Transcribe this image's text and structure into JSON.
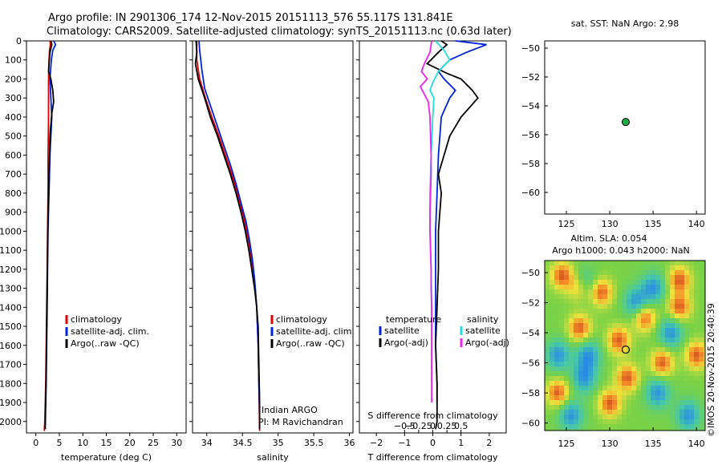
{
  "title_line1": "Argo profile: IN 2901306_174 12-Nov-2015 20151113_576 55.117S 131.841E",
  "title_line2": "Climatology: CARS2009. Satellite-adjusted climatology: synTS_20151113.nc (0.63d later)",
  "credit": "©IMOS 20-Nov-2015 20:40:39",
  "colors": {
    "clim": "#e00000",
    "sat": "#0022dd",
    "argo": "#000000",
    "sal_sat": "#22dddd",
    "sal_argo": "#ee22ee",
    "marker": "#22aa44"
  },
  "chart_data": [
    {
      "type": "line",
      "xlabel": "temperature (deg C)",
      "xlim": [
        -2,
        32
      ],
      "xticks": [
        0,
        5,
        10,
        15,
        20,
        25,
        30
      ],
      "ylim": [
        0,
        2060
      ],
      "yticks": [
        0,
        100,
        200,
        300,
        400,
        500,
        600,
        700,
        800,
        900,
        1000,
        1100,
        1200,
        1300,
        1400,
        1500,
        1600,
        1700,
        1800,
        1900,
        2000
      ],
      "legend": [
        "climatology",
        "satellite-adj. clim.",
        "Argo(..raw -QC)"
      ],
      "series": [
        {
          "name": "climatology",
          "color_key": "clim",
          "points": [
            [
              3.0,
              0
            ],
            [
              3.1,
              20
            ],
            [
              2.9,
              50
            ],
            [
              2.8,
              100
            ],
            [
              2.7,
              200
            ],
            [
              2.7,
              400
            ],
            [
              2.6,
              600
            ],
            [
              2.6,
              800
            ],
            [
              2.5,
              1000
            ],
            [
              2.4,
              1200
            ],
            [
              2.3,
              1400
            ],
            [
              2.2,
              1600
            ],
            [
              2.1,
              1800
            ],
            [
              1.9,
              2000
            ],
            [
              1.8,
              2050
            ]
          ]
        },
        {
          "name": "satellite-adj. clim.",
          "color_key": "sat",
          "points": [
            [
              3.8,
              0
            ],
            [
              4.2,
              20
            ],
            [
              3.6,
              50
            ],
            [
              3.3,
              100
            ],
            [
              3.0,
              200
            ],
            [
              3.2,
              300
            ],
            [
              3.4,
              400
            ],
            [
              3.0,
              600
            ],
            [
              2.8,
              800
            ],
            [
              2.6,
              1000
            ],
            [
              2.5,
              1200
            ],
            [
              2.4,
              1400
            ],
            [
              2.3,
              1600
            ],
            [
              2.2,
              1800
            ],
            [
              2.1,
              1900
            ]
          ]
        },
        {
          "name": "Argo(..raw -QC)",
          "color_key": "argo",
          "points": [
            [
              3.2,
              0
            ],
            [
              3.4,
              20
            ],
            [
              3.0,
              60
            ],
            [
              2.8,
              120
            ],
            [
              2.7,
              160
            ],
            [
              3.2,
              200
            ],
            [
              3.6,
              260
            ],
            [
              3.8,
              320
            ],
            [
              3.4,
              380
            ],
            [
              3.0,
              500
            ],
            [
              2.8,
              700
            ],
            [
              2.6,
              900
            ],
            [
              2.5,
              1100
            ],
            [
              2.4,
              1300
            ],
            [
              2.3,
              1500
            ],
            [
              2.2,
              1700
            ],
            [
              2.1,
              1900
            ],
            [
              2.0,
              2040
            ]
          ]
        }
      ]
    },
    {
      "type": "line",
      "xlabel": "salinity",
      "xlim": [
        33.8,
        36.05
      ],
      "xticks": [
        34,
        34.5,
        35,
        35.5,
        36
      ],
      "ylim": [
        0,
        2060
      ],
      "legend": [
        "climatology",
        "satellite-adj. clim.",
        "Argo(..raw -QC)"
      ],
      "annotations": [
        "Indian ARGO",
        "PI: M Ravichandran"
      ],
      "series": [
        {
          "name": "climatology",
          "color_key": "clim",
          "points": [
            [
              33.86,
              0
            ],
            [
              33.86,
              100
            ],
            [
              33.9,
              200
            ],
            [
              33.98,
              300
            ],
            [
              34.07,
              400
            ],
            [
              34.17,
              500
            ],
            [
              34.26,
              600
            ],
            [
              34.35,
              700
            ],
            [
              34.43,
              800
            ],
            [
              34.5,
              900
            ],
            [
              34.56,
              1000
            ],
            [
              34.61,
              1100
            ],
            [
              34.65,
              1200
            ],
            [
              34.68,
              1300
            ],
            [
              34.7,
              1400
            ],
            [
              34.72,
              1600
            ],
            [
              34.73,
              1800
            ],
            [
              34.74,
              2050
            ]
          ]
        },
        {
          "name": "satellite-adj. clim.",
          "color_key": "sat",
          "points": [
            [
              33.89,
              0
            ],
            [
              33.9,
              50
            ],
            [
              33.93,
              150
            ],
            [
              33.97,
              250
            ],
            [
              34.06,
              350
            ],
            [
              34.15,
              450
            ],
            [
              34.24,
              550
            ],
            [
              34.33,
              650
            ],
            [
              34.41,
              750
            ],
            [
              34.48,
              850
            ],
            [
              34.55,
              950
            ],
            [
              34.6,
              1050
            ],
            [
              34.64,
              1150
            ],
            [
              34.67,
              1250
            ],
            [
              34.7,
              1400
            ],
            [
              34.72,
              1600
            ],
            [
              34.73,
              1800
            ],
            [
              34.74,
              1950
            ]
          ]
        },
        {
          "name": "Argo(..raw -QC)",
          "color_key": "argo",
          "points": [
            [
              33.85,
              0
            ],
            [
              33.86,
              60
            ],
            [
              33.84,
              120
            ],
            [
              33.88,
              200
            ],
            [
              33.97,
              300
            ],
            [
              34.05,
              400
            ],
            [
              34.15,
              500
            ],
            [
              34.24,
              600
            ],
            [
              34.33,
              700
            ],
            [
              34.41,
              800
            ],
            [
              34.48,
              900
            ],
            [
              34.54,
              1000
            ],
            [
              34.59,
              1100
            ],
            [
              34.63,
              1200
            ],
            [
              34.67,
              1300
            ],
            [
              34.7,
              1400
            ],
            [
              34.72,
              1500
            ],
            [
              34.73,
              1700
            ],
            [
              34.74,
              1900
            ],
            [
              34.74,
              2040
            ]
          ]
        }
      ]
    },
    {
      "type": "line",
      "xlabel": "T difference from climatology",
      "xlabel_top": "S difference from climatology",
      "xlim": [
        -2.6,
        2.6
      ],
      "xticks": [
        -2,
        -1,
        0,
        1,
        2
      ],
      "xticks_top": [
        -0.5,
        -0.25,
        0,
        0.25,
        0.5
      ],
      "xticks_top_labels": [
        "−0.5",
        "−0.25",
        "0",
        "0.25",
        "0.5"
      ],
      "ylim": [
        0,
        2060
      ],
      "legend_left_title": "temperature",
      "legend_left": [
        "satellite",
        "Argo(-adj)"
      ],
      "legend_right_title": "salinity",
      "legend_right": [
        "satellite",
        "Argo(-adj)"
      ],
      "series": [
        {
          "name": "satellite",
          "quantity": "temperature",
          "color_key": "sat",
          "points": [
            [
              0.8,
              0
            ],
            [
              1.9,
              20
            ],
            [
              1.2,
              60
            ],
            [
              0.6,
              100
            ],
            [
              0.2,
              160
            ],
            [
              0.4,
              200
            ],
            [
              0.8,
              260
            ],
            [
              0.6,
              300
            ],
            [
              0.3,
              400
            ],
            [
              0.2,
              600
            ],
            [
              0.15,
              800
            ],
            [
              0.1,
              1000
            ],
            [
              0.1,
              1200
            ],
            [
              0.1,
              1400
            ],
            [
              0.1,
              1600
            ],
            [
              0.15,
              1800
            ],
            [
              0.15,
              1900
            ]
          ]
        },
        {
          "name": "Argo(-adj)",
          "quantity": "temperature",
          "color_key": "argo",
          "points": [
            [
              0.3,
              0
            ],
            [
              0.5,
              20
            ],
            [
              0.2,
              60
            ],
            [
              -0.2,
              120
            ],
            [
              0.5,
              170
            ],
            [
              1.0,
              200
            ],
            [
              1.4,
              260
            ],
            [
              1.6,
              300
            ],
            [
              1.0,
              400
            ],
            [
              0.6,
              500
            ],
            [
              0.4,
              600
            ],
            [
              0.2,
              700
            ],
            [
              0.3,
              800
            ],
            [
              0.2,
              1000
            ],
            [
              0.2,
              1200
            ],
            [
              0.15,
              1400
            ],
            [
              0.1,
              1600
            ],
            [
              0.15,
              1800
            ],
            [
              0.15,
              2000
            ],
            [
              0.1,
              2040
            ]
          ]
        },
        {
          "name": "satellite",
          "quantity": "salinity",
          "color_key": "sal_sat",
          "points": [
            [
              0.05,
              0
            ],
            [
              0.2,
              50
            ],
            [
              0.3,
              100
            ],
            [
              0.1,
              160
            ],
            [
              0.0,
              220
            ],
            [
              -0.05,
              260
            ],
            [
              0.02,
              300
            ],
            [
              0.0,
              400
            ],
            [
              -0.03,
              600
            ],
            [
              -0.05,
              800
            ],
            [
              -0.05,
              1000
            ],
            [
              -0.03,
              1200
            ],
            [
              -0.02,
              1400
            ],
            [
              -0.02,
              1600
            ],
            [
              -0.02,
              1800
            ]
          ]
        },
        {
          "name": "Argo(-adj)",
          "quantity": "salinity",
          "color_key": "sal_argo",
          "points": [
            [
              -0.02,
              0
            ],
            [
              -0.05,
              60
            ],
            [
              -0.15,
              120
            ],
            [
              -0.2,
              160
            ],
            [
              -0.1,
              200
            ],
            [
              -0.22,
              240
            ],
            [
              -0.15,
              280
            ],
            [
              -0.08,
              320
            ],
            [
              -0.05,
              400
            ],
            [
              -0.04,
              500
            ],
            [
              -0.03,
              600
            ],
            [
              -0.03,
              700
            ],
            [
              -0.04,
              800
            ],
            [
              -0.05,
              900
            ],
            [
              -0.05,
              1000
            ],
            [
              -0.04,
              1100
            ],
            [
              -0.03,
              1200
            ],
            [
              -0.03,
              1300
            ],
            [
              -0.02,
              1400
            ],
            [
              -0.02,
              1500
            ],
            [
              -0.02,
              1600
            ],
            [
              -0.02,
              1800
            ],
            [
              -0.02,
              1900
            ]
          ]
        }
      ]
    },
    {
      "type": "scatter",
      "title": "sat. SST: NaN Argo: 2.98",
      "xlim": [
        122.5,
        141
      ],
      "ylim": [
        -61.5,
        -49.5
      ],
      "xticks": [
        125,
        130,
        135,
        140
      ],
      "yticks": [
        -50,
        -52,
        -54,
        -56,
        -58,
        -60
      ],
      "points": [
        {
          "x": 131.84,
          "y": -55.12
        }
      ]
    },
    {
      "type": "heatmap",
      "title_line1": "Altim. SLA: 0.054",
      "title_line2": "Argo h1000: 0.043 h2000: NaN",
      "xlim": [
        122.5,
        141
      ],
      "ylim": [
        -60.5,
        -49.2
      ],
      "xticks": [
        125,
        130,
        135,
        140
      ],
      "yticks": [
        -50,
        -52,
        -54,
        -56,
        -58,
        -60
      ],
      "marker": {
        "x": 131.84,
        "y": -55.12
      },
      "high_anomaly_centers": [
        [
          124.5,
          -50.2
        ],
        [
          126.5,
          -51
        ],
        [
          129,
          -51.3
        ],
        [
          126.5,
          -53.7
        ],
        [
          131,
          -54.5
        ],
        [
          132,
          -57
        ],
        [
          138,
          -50.5
        ],
        [
          138,
          -52.3
        ],
        [
          136,
          -56
        ],
        [
          130,
          -58.7
        ],
        [
          124,
          -58
        ],
        [
          140,
          -55.5
        ],
        [
          134,
          -53
        ]
      ],
      "low_anomaly_centers": [
        [
          127,
          -50.8
        ],
        [
          127.5,
          -55.5
        ],
        [
          133,
          -52
        ],
        [
          135,
          -51
        ],
        [
          135.5,
          -58
        ],
        [
          127,
          -57
        ],
        [
          124,
          -55.5
        ],
        [
          139,
          -59.5
        ],
        [
          137,
          -54
        ],
        [
          125.5,
          -59.5
        ]
      ]
    }
  ]
}
